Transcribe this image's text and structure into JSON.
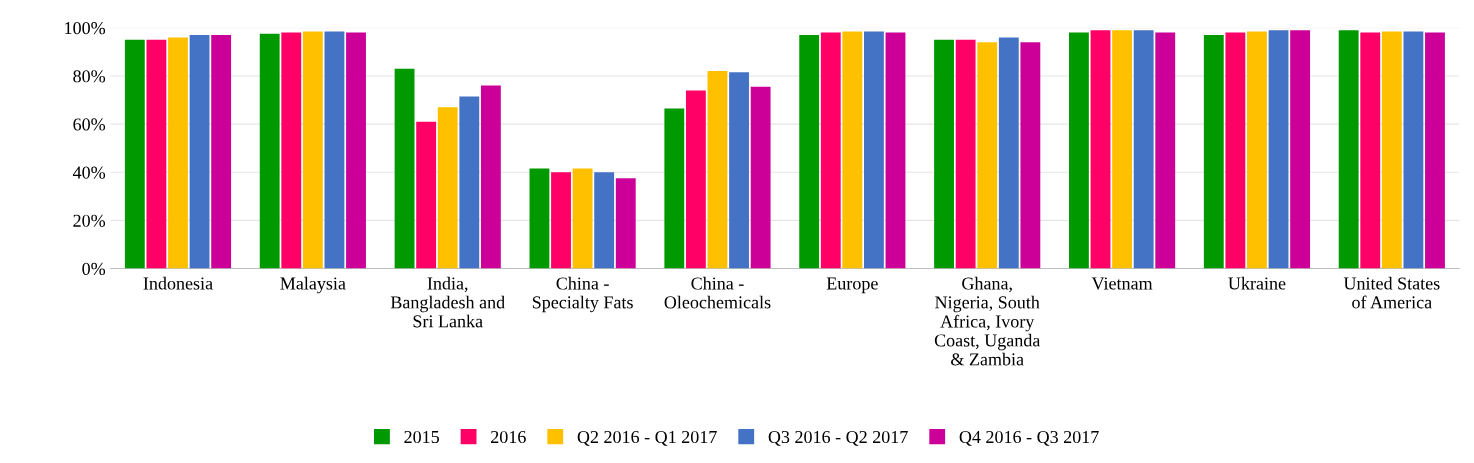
{
  "chart_data": {
    "type": "bar",
    "categories": [
      "Indonesia",
      "Malaysia",
      "India, Bangladesh and Sri Lanka",
      "China - Specialty Fats",
      "China - Oleochemicals",
      "Europe",
      "Ghana, Nigeria, South Africa, Ivory Coast, Uganda & Zambia",
      "Vietnam",
      "Ukraine",
      "United States of America"
    ],
    "series": [
      {
        "name": "2015",
        "color": "#009900",
        "values": [
          95,
          97.5,
          83,
          41.5,
          66.5,
          97,
          95,
          98,
          97,
          99
        ]
      },
      {
        "name": "2016",
        "color": "#ff0066",
        "values": [
          95,
          98,
          61,
          40,
          74,
          98,
          95,
          99,
          98,
          98
        ]
      },
      {
        "name": "Q2 2016 - Q1 2017",
        "color": "#ffc000",
        "values": [
          96,
          98.5,
          67,
          41.5,
          82,
          98.5,
          94,
          99,
          98.5,
          98.5
        ]
      },
      {
        "name": "Q3 2016 - Q2 2017",
        "color": "#4472c4",
        "values": [
          97,
          98.5,
          71.5,
          40,
          81.5,
          98.5,
          96,
          99,
          99,
          98.5
        ]
      },
      {
        "name": "Q4 2016 - Q3 2017",
        "color": "#cc0099",
        "values": [
          97,
          98,
          76,
          37.5,
          75.5,
          98,
          94,
          98,
          99,
          98
        ]
      }
    ],
    "ylim": [
      0,
      100
    ],
    "yticks": [
      {
        "value": 0,
        "label": "0%"
      },
      {
        "value": 20,
        "label": "20%"
      },
      {
        "value": 40,
        "label": "40%"
      },
      {
        "value": 60,
        "label": "60%"
      },
      {
        "value": 80,
        "label": "80%"
      },
      {
        "value": 100,
        "label": "100%"
      }
    ],
    "grid": "y",
    "legend": "bottom"
  }
}
